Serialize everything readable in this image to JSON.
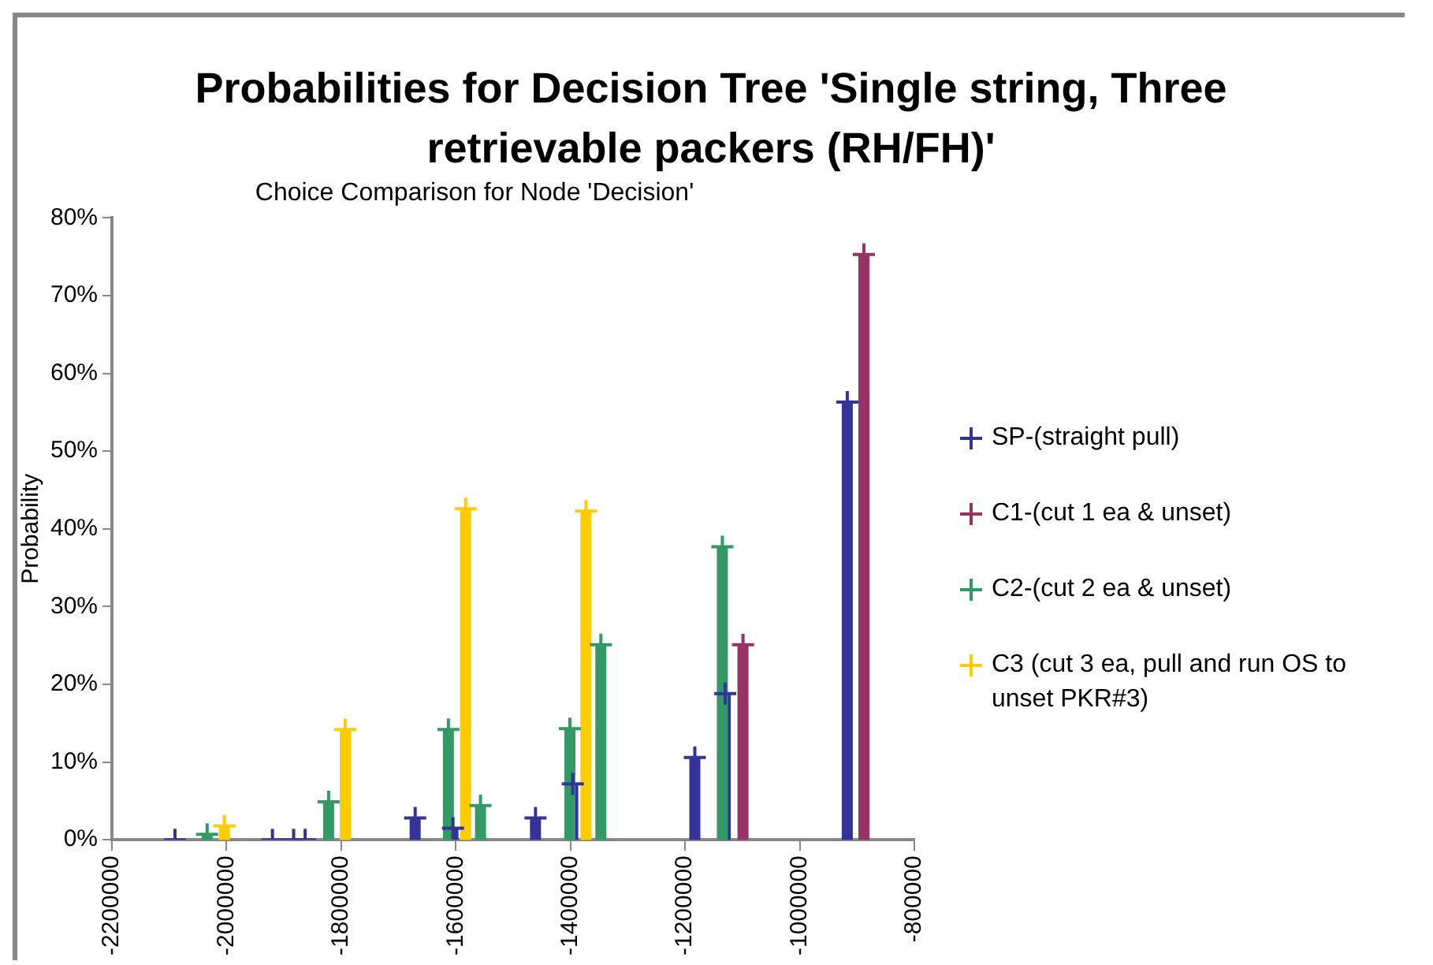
{
  "chart_data": {
    "type": "lollipop",
    "title": "Probabilities for Decision Tree 'Single string, Three retrievable packers (RH/FH)'",
    "subtitle": "Choice Comparison for Node 'Decision'",
    "ylabel": "Probability",
    "xlim": [
      -2200000,
      -800000
    ],
    "xticks": [
      -2200000,
      -2000000,
      -1800000,
      -1600000,
      -1400000,
      -1200000,
      -1000000,
      -800000
    ],
    "ylim": [
      0,
      80
    ],
    "yticks": [
      {
        "value": 0,
        "label": "0%"
      },
      {
        "value": 10,
        "label": "10%"
      },
      {
        "value": 20,
        "label": "20%"
      },
      {
        "value": 30,
        "label": "30%"
      },
      {
        "value": 40,
        "label": "40%"
      },
      {
        "value": 50,
        "label": "50%"
      },
      {
        "value": 60,
        "label": "60%"
      },
      {
        "value": 70,
        "label": "70%"
      },
      {
        "value": 80,
        "label": "80%"
      }
    ],
    "grid": false,
    "legend": "right",
    "marker": "cross",
    "series": [
      {
        "name": "SP-(straight pull)",
        "color": "#333399",
        "x": [
          -2090000,
          -1920000,
          -1883000,
          -1863000,
          -1671000,
          -1605000,
          -1461000,
          -1396000,
          -1183000,
          -1130000,
          -917000
        ],
        "values": [
          0,
          0,
          0,
          0,
          2.8,
          1.5,
          2.8,
          7.2,
          10.6,
          18.8,
          56.3
        ]
      },
      {
        "name": "C1-(cut 1 ea & unset)",
        "color": "#993366",
        "x": [
          -1099000,
          -888000
        ],
        "values": [
          25.1,
          75.3
        ]
      },
      {
        "name": "C2-(cut 2 ea & unset)",
        "color": "#339966",
        "x": [
          -2034000,
          -1822000,
          -1613000,
          -1557000,
          -1401000,
          -1347000,
          -1135000
        ],
        "values": [
          0.7,
          4.9,
          14.2,
          4.4,
          14.3,
          25.1,
          37.7
        ]
      },
      {
        "name": "C3 (cut 3 ea,  pull and run OS to unset PKR#3)",
        "color": "#ffcc00",
        "x": [
          -2004000,
          -1793000,
          -1583000,
          -1373000
        ],
        "values": [
          1.8,
          14.2,
          42.6,
          42.3
        ]
      }
    ]
  }
}
